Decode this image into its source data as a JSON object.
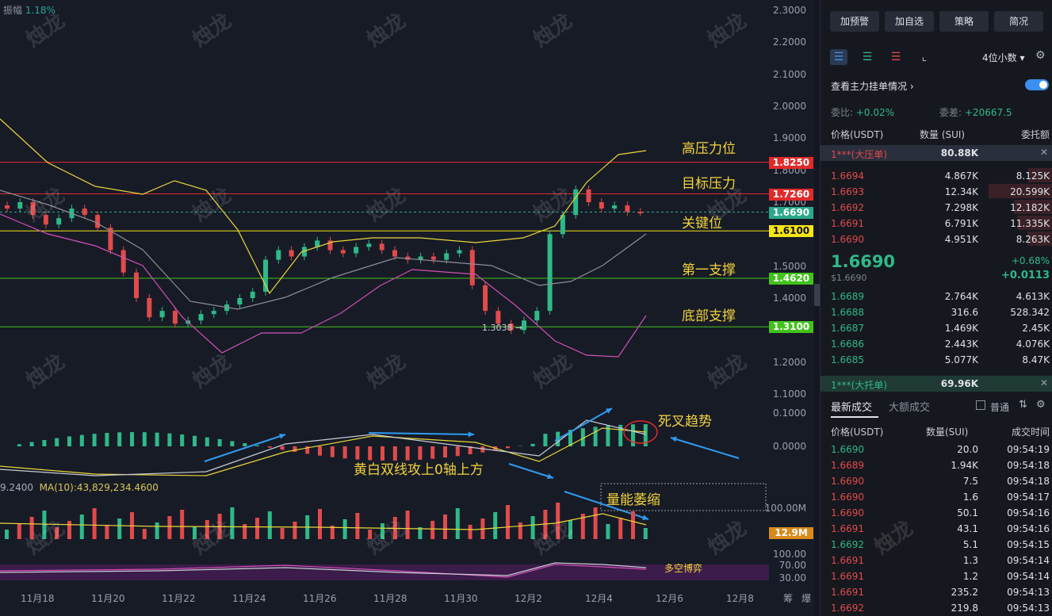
{
  "header": {
    "amplitude_label": "振幅",
    "amplitude_value": "1.18%"
  },
  "watermark_text": "烛龙",
  "price_axis": [
    "2.3000",
    "2.2000",
    "2.1000",
    "2.0000",
    "1.9000",
    "1.8000",
    "1.7000",
    "1.6000",
    "1.5000",
    "1.4000",
    "1.3000",
    "1.2000",
    "1.1000"
  ],
  "price_tags": [
    {
      "value": "1.8250",
      "color": "#e02b2b",
      "text_color": "#ffffff"
    },
    {
      "value": "1.7260",
      "color": "#e02b2b",
      "text_color": "#ffffff"
    },
    {
      "value": "1.6690",
      "color": "#2aa88a",
      "text_color": "#ffffff"
    },
    {
      "value": "1.6100",
      "color": "#f5e418",
      "text_color": "#111111"
    },
    {
      "value": "1.4620",
      "color": "#42c21c",
      "text_color": "#ffffff"
    },
    {
      "value": "1.3100",
      "color": "#42c21c",
      "text_color": "#ffffff"
    }
  ],
  "annotations": {
    "high_pressure": "高压力位",
    "target_pressure": "目标压力",
    "key_level": "关键位",
    "first_support": "第一支撑",
    "bottom_support": "底部支撑",
    "death_cross": "死叉趋势",
    "macd_note": "黄白双线攻上0轴上方",
    "volume_shrink": "量能萎缩",
    "long_short": "多空博弈",
    "low_marker": "1.3038 →"
  },
  "macd_axis": [
    "0.1000",
    "0.0000"
  ],
  "volume": {
    "ma_label": "MA(10):43,829,234.4600",
    "prefix": "9.2400",
    "axis": "100.00M",
    "tag": "12.9M"
  },
  "osc_axis": [
    "100.00",
    "70.00",
    "30.00"
  ],
  "x_axis": [
    "11月18",
    "11月20",
    "11月22",
    "11月24",
    "11月26",
    "11月28",
    "11月30",
    "12月2",
    "12月4",
    "12月6",
    "12月8"
  ],
  "x_corner": [
    "筹",
    "爆"
  ],
  "panel": {
    "buttons": [
      "加预警",
      "加自选",
      "策略",
      "简况"
    ],
    "decimals": "4位小数",
    "main_order_label": "查看主力挂单情况",
    "ratio_label": "委比:",
    "ratio_value": "+0.02%",
    "diff_label": "委差:",
    "diff_value": "+20667.5",
    "book_headers": [
      "价格(USDT)",
      "数量 (SUI)",
      "委托额"
    ],
    "big_ask_label": "1***(大压单)",
    "big_ask_value": "80.88K",
    "asks": [
      {
        "p": "1.6694",
        "q": "4.867K",
        "t": "8.125K",
        "w": 0.35
      },
      {
        "p": "1.6693",
        "q": "12.34K",
        "t": "20.599K",
        "w": 0.9
      },
      {
        "p": "1.6692",
        "q": "7.298K",
        "t": "12.182K",
        "w": 0.55
      },
      {
        "p": "1.6691",
        "q": "6.791K",
        "t": "11.335K",
        "w": 0.5
      },
      {
        "p": "1.6690",
        "q": "4.951K",
        "t": "8.263K",
        "w": 0.36
      }
    ],
    "last_price": "1.6690",
    "last_usd": "$1.6690",
    "change_pct": "+0.68%",
    "change_abs": "+0.0113",
    "bids": [
      {
        "p": "1.6689",
        "q": "2.764K",
        "t": "4.613K"
      },
      {
        "p": "1.6688",
        "q": "316.6",
        "t": "528.342"
      },
      {
        "p": "1.6687",
        "q": "1.469K",
        "t": "2.45K"
      },
      {
        "p": "1.6686",
        "q": "2.443K",
        "t": "4.076K"
      },
      {
        "p": "1.6685",
        "q": "5.077K",
        "t": "8.47K"
      }
    ],
    "big_bid_label": "1***(大托单)",
    "big_bid_value": "69.96K",
    "trade_tabs": [
      "最新成交",
      "大额成交"
    ],
    "normal_label": "普通",
    "trade_headers": [
      "价格(USDT)",
      "数量(SUI)",
      "成交时间"
    ],
    "trades": [
      {
        "p": "1.6690",
        "q": "20.0",
        "t": "09:54:19",
        "c": "green"
      },
      {
        "p": "1.6689",
        "q": "1.94K",
        "t": "09:54:18",
        "c": "red"
      },
      {
        "p": "1.6690",
        "q": "7.5",
        "t": "09:54:18",
        "c": "red"
      },
      {
        "p": "1.6690",
        "q": "1.6",
        "t": "09:54:17",
        "c": "red"
      },
      {
        "p": "1.6690",
        "q": "50.1",
        "t": "09:54:16",
        "c": "red"
      },
      {
        "p": "1.6691",
        "q": "43.1",
        "t": "09:54:16",
        "c": "red"
      },
      {
        "p": "1.6692",
        "q": "5.1",
        "t": "09:54:15",
        "c": "green"
      },
      {
        "p": "1.6691",
        "q": "1.3",
        "t": "09:54:14",
        "c": "red"
      },
      {
        "p": "1.6691",
        "q": "1.2",
        "t": "09:54:14",
        "c": "red"
      },
      {
        "p": "1.6691",
        "q": "235.2",
        "t": "09:54:13",
        "c": "red"
      },
      {
        "p": "1.6692",
        "q": "219.8",
        "t": "09:54:13",
        "c": "red"
      }
    ]
  }
}
